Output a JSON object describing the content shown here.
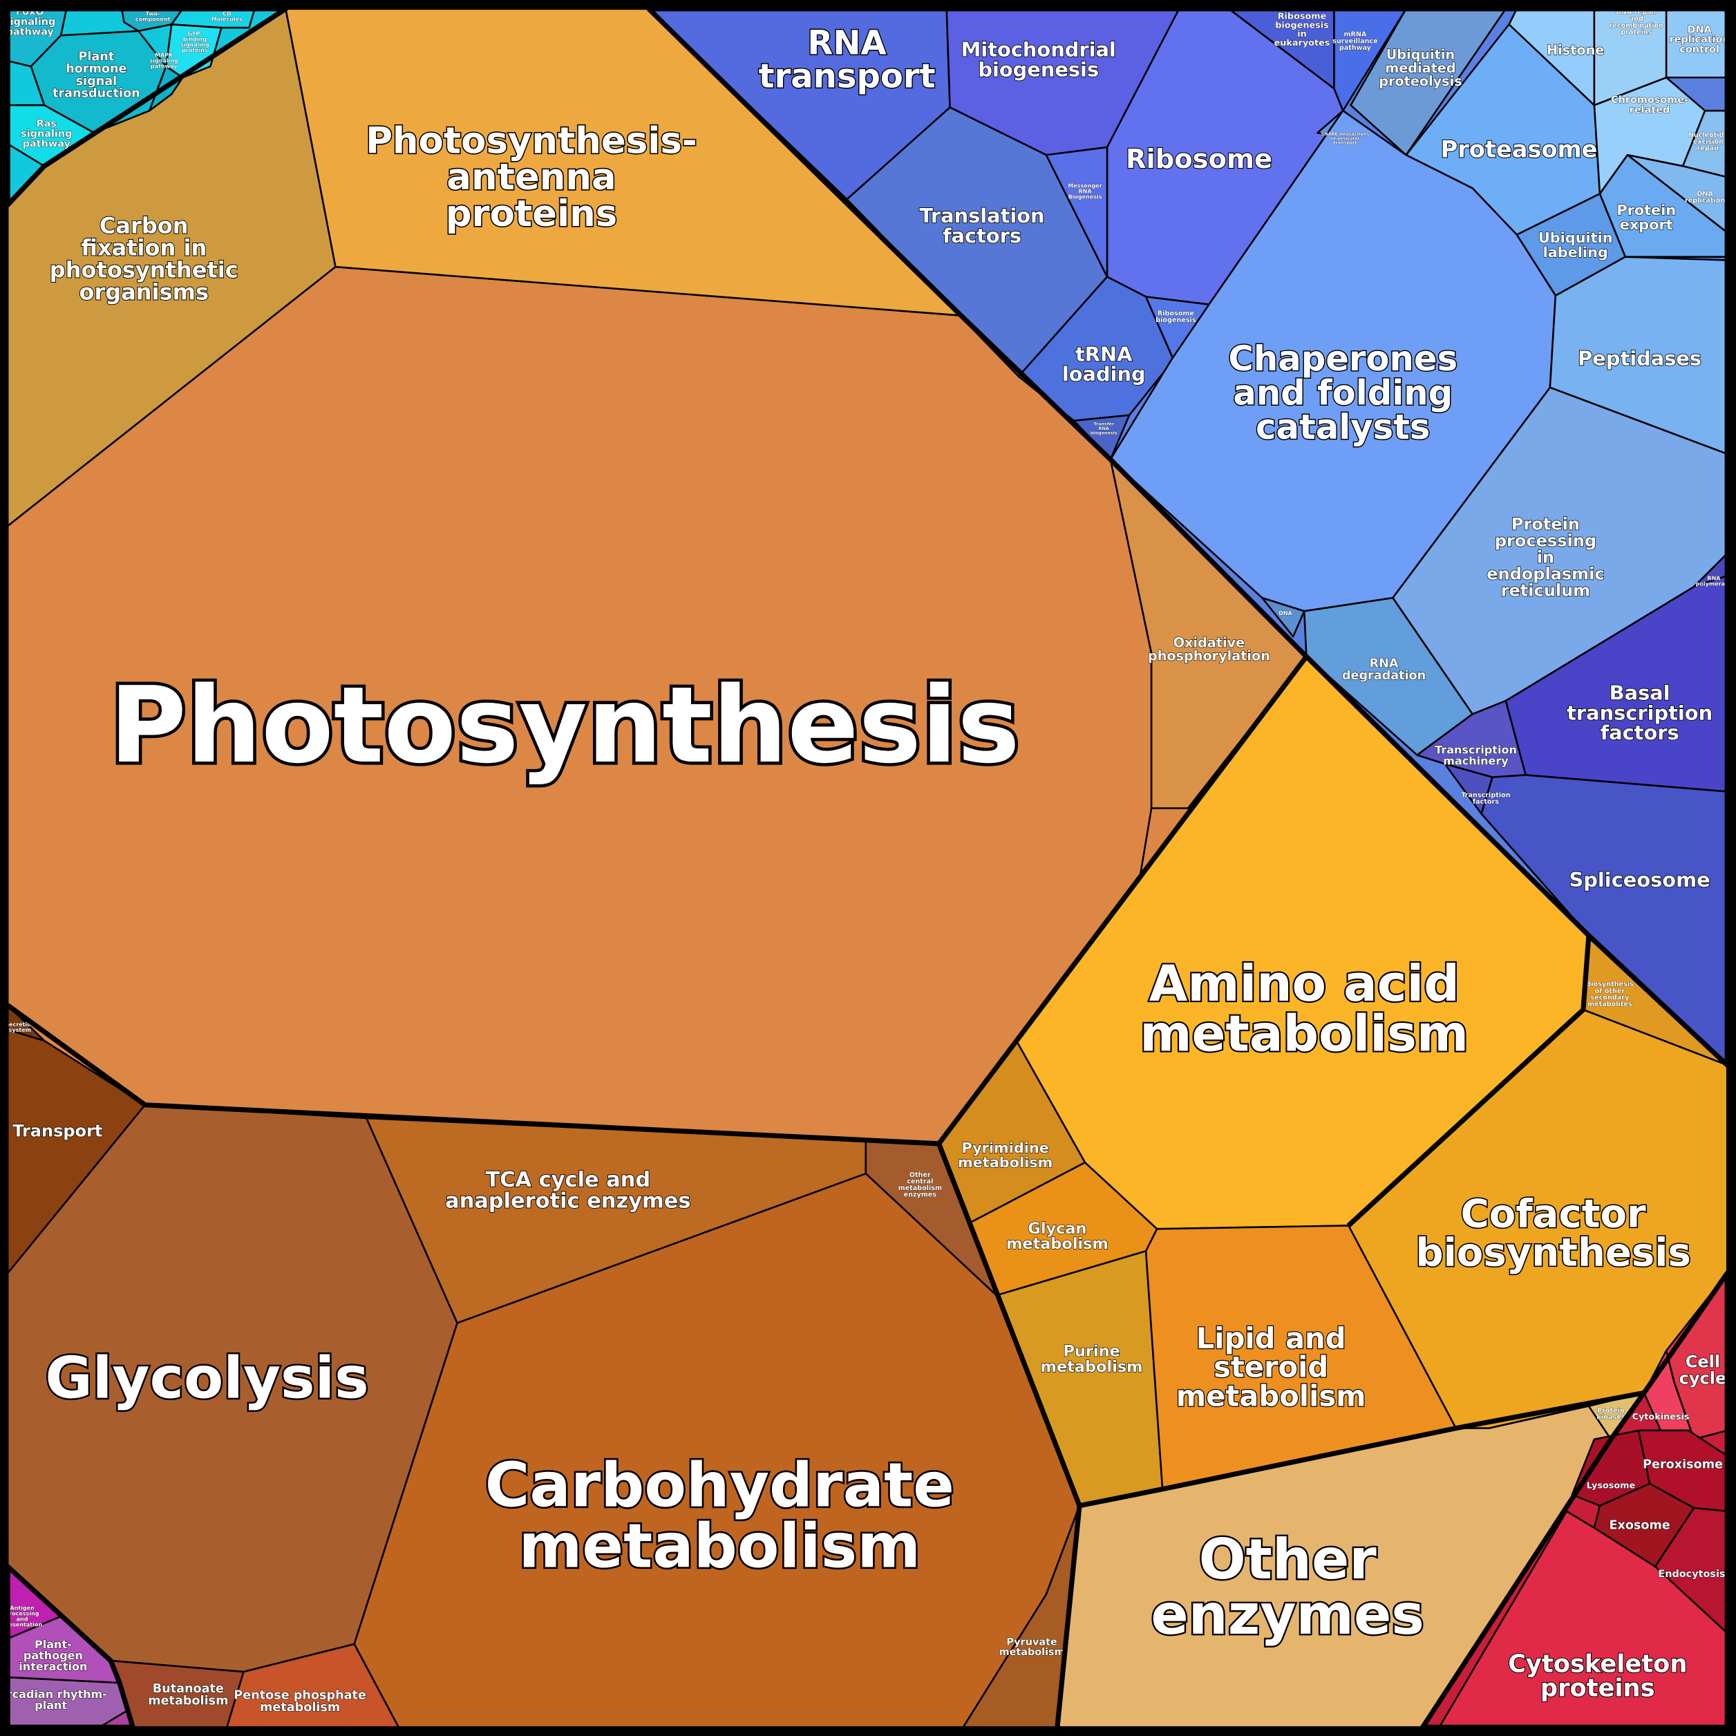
{
  "cells": [
    {
      "label": [
        "Photosynthesis"
      ]
    },
    {
      "label": [
        "Photosynthesis-",
        "antenna",
        "proteins"
      ]
    },
    {
      "label": [
        "Carbon",
        "fixation in",
        "photosynthetic",
        "organisms"
      ]
    },
    {
      "label": [
        "Oxidative",
        "phosphorylation"
      ]
    },
    {
      "label": [
        "Transport"
      ]
    },
    {
      "label": [
        "Secretion",
        "system"
      ]
    },
    {
      "label": [
        "Glycolysis"
      ]
    },
    {
      "label": [
        "TCA cycle and",
        "anaplerotic enzymes"
      ]
    },
    {
      "label": [
        "Other",
        "central",
        "metabolism",
        "enzymes"
      ]
    },
    {
      "label": [
        "Carbohydrate",
        "metabolism"
      ]
    },
    {
      "label": [
        "Pyruvate",
        "metabolism"
      ]
    },
    {
      "label": [
        "Butanoate",
        "metabolism"
      ]
    },
    {
      "label": [
        "Pentose phosphate",
        "metabolism"
      ]
    },
    {
      "label": [
        "Amino acid",
        "metabolism"
      ]
    },
    {
      "label": [
        "Biosynthesis",
        "of other",
        "secondary",
        "metabolites"
      ]
    },
    {
      "label": [
        "Cofactor",
        "biosynthesis"
      ]
    },
    {
      "label": [
        "Pyrimidine",
        "metabolism"
      ]
    },
    {
      "label": [
        "Glycan",
        "metabolism"
      ]
    },
    {
      "label": [
        "Purine",
        "metabolism"
      ]
    },
    {
      "label": [
        "Lipid and",
        "steroid",
        "metabolism"
      ]
    },
    {
      "label": [
        "Other",
        "enzymes"
      ]
    },
    {
      "label": [
        "Protein",
        "kinases"
      ]
    },
    {
      "label": [
        "Cell",
        "cycle"
      ]
    },
    {
      "label": [
        "Cytokinesis"
      ]
    },
    {
      "label": [
        "Lysosome"
      ]
    },
    {
      "label": [
        "Peroxisome"
      ]
    },
    {
      "label": [
        "Exosome"
      ]
    },
    {
      "label": [
        "Endocytosis"
      ]
    },
    {
      "label": [
        "Cytoskeleton",
        "proteins"
      ]
    },
    {
      "label": [
        "Antigen",
        "processing",
        "and",
        "presentation"
      ]
    },
    {
      "label": [
        "Plant-",
        "pathogen",
        "interaction"
      ]
    },
    {
      "label": [
        "Circadian rhythm-",
        "plant"
      ]
    },
    {
      "label": [
        "FoxO",
        "signaling",
        "pathway"
      ]
    },
    {
      "label": [
        "Plant",
        "hormone",
        "signal",
        "transduction"
      ]
    },
    {
      "label": [
        "Ras",
        "signaling",
        "pathway"
      ]
    },
    {
      "label": [
        "Two-",
        "component"
      ]
    },
    {
      "label": [
        "GTP-",
        "binding",
        "signaling",
        "proteins"
      ]
    },
    {
      "label": [
        "CD",
        "Molecules"
      ]
    },
    {
      "label": [
        "MAPK",
        "signaling",
        "pathway"
      ]
    },
    {
      "label": [
        "RNA",
        "transport"
      ]
    },
    {
      "label": [
        "Mitochondrial",
        "biogenesis"
      ]
    },
    {
      "label": [
        "Ribosome"
      ]
    },
    {
      "label": [
        "Translation",
        "factors"
      ]
    },
    {
      "label": [
        "Messenger",
        "RNA",
        "Biogenesis"
      ]
    },
    {
      "label": [
        "tRNA",
        "loading"
      ]
    },
    {
      "label": [
        "Ribosome",
        "biogenesis"
      ]
    },
    {
      "label": [
        "Transfer",
        "RNA",
        "biogenesis"
      ]
    },
    {
      "label": [
        "Ribosome",
        "biogenesis",
        "in",
        "eukaryotes"
      ]
    },
    {
      "label": [
        "mRNA",
        "surveillance",
        "pathway"
      ]
    },
    {
      "label": [
        "Ubiquitin",
        "mediated",
        "proteolysis"
      ]
    },
    {
      "label": [
        "Proteasome"
      ]
    },
    {
      "label": [
        "Histone"
      ]
    },
    {
      "label": [
        "Chromosome-",
        "related"
      ]
    },
    {
      "label": [
        "DNA",
        "replication",
        "control"
      ]
    },
    {
      "label": [
        "DNA repair",
        "and",
        "recombination",
        "proteins"
      ]
    },
    {
      "label": [
        "Nucleotide",
        "excision",
        "repair"
      ]
    },
    {
      "label": [
        "DNA",
        "replication"
      ]
    },
    {
      "label": [
        "Protein",
        "export"
      ]
    },
    {
      "label": [
        "Ubiquitin",
        "labeling"
      ]
    },
    {
      "label": [
        "SNARE interactions",
        "in vesicular",
        "transport"
      ]
    },
    {
      "label": [
        "Chaperones",
        "and folding",
        "catalysts"
      ]
    },
    {
      "label": [
        "Peptidases"
      ]
    },
    {
      "label": [
        "Protein",
        "processing",
        "in",
        "endoplasmic",
        "reticulum"
      ]
    },
    {
      "label": [
        "RNA",
        "degradation"
      ]
    },
    {
      "label": [
        "DNA"
      ]
    },
    {
      "label": [
        "RNA",
        "polymerase"
      ]
    },
    {
      "label": [
        "Basal",
        "transcription",
        "factors"
      ]
    },
    {
      "label": [
        "Transcription",
        "machinery"
      ]
    },
    {
      "label": [
        "Transcription",
        "factors"
      ]
    },
    {
      "label": [
        "Spliceosome"
      ]
    }
  ]
}
